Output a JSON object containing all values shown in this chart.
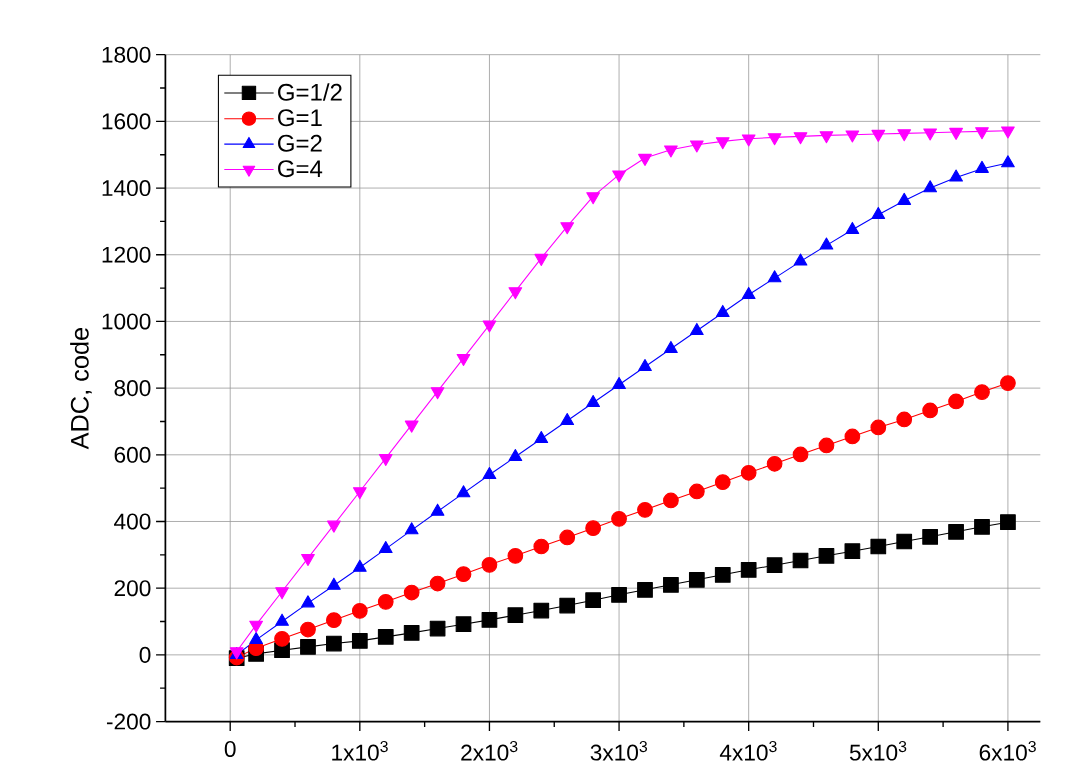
{
  "chart_data": {
    "type": "line",
    "ylabel": "ADC, code",
    "x": [
      50,
      200,
      400,
      600,
      800,
      1000,
      1200,
      1400,
      1600,
      1800,
      2000,
      2200,
      2400,
      2600,
      2800,
      3000,
      3200,
      3400,
      3600,
      3800,
      4000,
      4200,
      4400,
      4600,
      4800,
      5000,
      5200,
      5400,
      5600,
      5800,
      6000
    ],
    "series": [
      {
        "name": "G=1/2",
        "color": "#000000",
        "marker": "square",
        "values": [
          -10,
          3,
          14,
          24,
          34,
          42,
          54,
          66,
          79,
          92,
          105,
          119,
          133,
          148,
          164,
          180,
          195,
          210,
          225,
          240,
          255,
          269,
          283,
          297,
          311,
          325,
          340,
          354,
          369,
          384,
          398
        ]
      },
      {
        "name": "G=1",
        "color": "#ff0000",
        "marker": "circle",
        "values": [
          -8,
          20,
          48,
          76,
          104,
          132,
          159,
          187,
          214,
          242,
          270,
          297,
          325,
          352,
          380,
          408,
          435,
          463,
          490,
          518,
          546,
          573,
          601,
          628,
          655,
          682,
          706,
          733,
          760,
          788,
          815
        ]
      },
      {
        "name": "G=2",
        "color": "#0000ff",
        "marker": "triangle",
        "values": [
          0,
          45,
          100,
          155,
          208,
          262,
          318,
          374,
          430,
          485,
          540,
          594,
          648,
          702,
          756,
          810,
          864,
          918,
          972,
          1026,
          1080,
          1130,
          1180,
          1228,
          1275,
          1320,
          1362,
          1400,
          1432,
          1458,
          1475
        ]
      },
      {
        "name": "G=4",
        "color": "#ff00ff",
        "marker": "triangle-down",
        "values": [
          10,
          90,
          190,
          290,
          390,
          490,
          590,
          690,
          790,
          890,
          990,
          1090,
          1190,
          1285,
          1375,
          1440,
          1490,
          1515,
          1530,
          1540,
          1548,
          1552,
          1555,
          1558,
          1560,
          1562,
          1564,
          1566,
          1568,
          1570,
          1572
        ]
      }
    ],
    "xlim": [
      -500,
      6250
    ],
    "ylim": [
      -200,
      1800
    ],
    "xticks": [
      0,
      {
        "value": 1000,
        "label": "1x10$^{3}$"
      },
      {
        "value": 2000,
        "label": "2x10$^{3}$"
      },
      {
        "value": 3000,
        "label": "3x10$^{3}$"
      },
      {
        "value": 4000,
        "label": "4x10$^{3}$"
      },
      {
        "value": 5000,
        "label": "5x10$^{3}$"
      },
      {
        "value": 6000,
        "label": "6x10$^{3}$"
      }
    ],
    "yticks": [
      -200,
      0,
      200,
      400,
      600,
      800,
      1000,
      1200,
      1400,
      1600,
      1800
    ],
    "grid": true,
    "legend": "top left",
    "line_style": "solid"
  }
}
